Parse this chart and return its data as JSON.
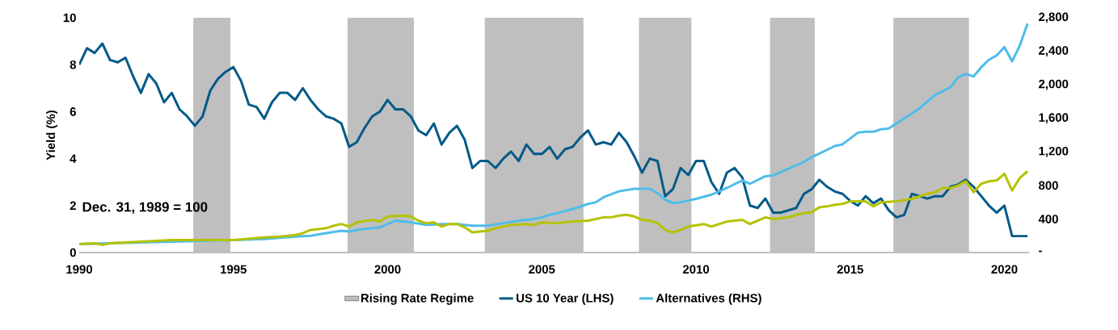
{
  "chart_data": {
    "type": "line",
    "ylabel": "Yield (%)",
    "annotations": [
      "Dec. 31, 1989 = 100"
    ],
    "xlim": [
      1990,
      2020.8
    ],
    "xticks": [
      1990,
      1995,
      2000,
      2005,
      2010,
      2015,
      2020
    ],
    "ylim": [
      0,
      10
    ],
    "yticks": [
      0,
      2,
      4,
      6,
      8,
      10
    ],
    "y2lim": [
      0,
      2800
    ],
    "y2ticks": [
      {
        "value": 0,
        "label": "-"
      },
      400,
      800,
      {
        "value": 1200,
        "label": "1,200"
      },
      {
        "value": 1600,
        "label": "1,600"
      },
      {
        "value": 2000,
        "label": "2,000"
      },
      {
        "value": 2400,
        "label": "2,400"
      },
      {
        "value": 2800,
        "label": "2,800"
      }
    ],
    "legend": "bottom",
    "bands": [
      {
        "axis": "x",
        "from": 1993.7,
        "to": 1994.9,
        "label": "Rising Rate Regime",
        "color": "#bfbfbf"
      },
      {
        "axis": "x",
        "from": 1998.7,
        "to": 2000.85,
        "color": "#bfbfbf"
      },
      {
        "axis": "x",
        "from": 2003.15,
        "to": 2006.35,
        "color": "#bfbfbf"
      },
      {
        "axis": "x",
        "from": 2008.15,
        "to": 2009.85,
        "color": "#bfbfbf"
      },
      {
        "axis": "x",
        "from": 2012.4,
        "to": 2013.85,
        "color": "#bfbfbf"
      },
      {
        "axis": "x",
        "from": 2016.4,
        "to": 2018.85,
        "color": "#bfbfbf"
      }
    ],
    "series": [
      {
        "name": "US 10 Year (LHS)",
        "color": "#005a87",
        "x": [
          1990,
          1990.25,
          1990.5,
          1990.75,
          1991,
          1991.25,
          1991.5,
          1991.75,
          1992,
          1992.25,
          1992.5,
          1992.75,
          1993,
          1993.25,
          1993.5,
          1993.75,
          1994,
          1994.25,
          1994.5,
          1994.75,
          1995,
          1995.25,
          1995.5,
          1995.75,
          1996,
          1996.25,
          1996.5,
          1996.75,
          1997,
          1997.25,
          1997.5,
          1997.75,
          1998,
          1998.25,
          1998.5,
          1998.75,
          1999,
          1999.25,
          1999.5,
          1999.75,
          2000,
          2000.25,
          2000.5,
          2000.75,
          2001,
          2001.25,
          2001.5,
          2001.75,
          2002,
          2002.25,
          2002.5,
          2002.75,
          2003,
          2003.25,
          2003.5,
          2003.75,
          2004,
          2004.25,
          2004.5,
          2004.75,
          2005,
          2005.25,
          2005.5,
          2005.75,
          2006,
          2006.25,
          2006.5,
          2006.75,
          2007,
          2007.25,
          2007.5,
          2007.75,
          2008,
          2008.25,
          2008.5,
          2008.75,
          2009,
          2009.25,
          2009.5,
          2009.75,
          2010,
          2010.25,
          2010.5,
          2010.75,
          2011,
          2011.25,
          2011.5,
          2011.75,
          2012,
          2012.25,
          2012.5,
          2012.75,
          2013,
          2013.25,
          2013.5,
          2013.75,
          2014,
          2014.25,
          2014.5,
          2014.75,
          2015,
          2015.25,
          2015.5,
          2015.75,
          2016,
          2016.25,
          2016.5,
          2016.75,
          2017,
          2017.25,
          2017.5,
          2017.75,
          2018,
          2018.25,
          2018.5,
          2018.75,
          2019,
          2019.25,
          2019.5,
          2019.75,
          2020,
          2020.25,
          2020.5,
          2020.75
        ],
        "values": [
          8.0,
          8.7,
          8.5,
          8.9,
          8.2,
          8.1,
          8.3,
          7.5,
          6.8,
          7.6,
          7.2,
          6.4,
          6.8,
          6.1,
          5.8,
          5.4,
          5.8,
          6.9,
          7.4,
          7.7,
          7.9,
          7.3,
          6.3,
          6.2,
          5.7,
          6.4,
          6.8,
          6.8,
          6.5,
          7.0,
          6.5,
          6.1,
          5.8,
          5.7,
          5.5,
          4.5,
          4.7,
          5.3,
          5.8,
          6.0,
          6.5,
          6.1,
          6.1,
          5.8,
          5.2,
          5.0,
          5.5,
          4.6,
          5.1,
          5.4,
          4.8,
          3.6,
          3.9,
          3.9,
          3.6,
          4.0,
          4.3,
          3.9,
          4.6,
          4.2,
          4.2,
          4.5,
          4.0,
          4.4,
          4.5,
          4.9,
          5.2,
          4.6,
          4.7,
          4.6,
          5.1,
          4.7,
          4.1,
          3.4,
          4.0,
          3.9,
          2.4,
          2.7,
          3.6,
          3.3,
          3.9,
          3.9,
          3.0,
          2.5,
          3.4,
          3.6,
          3.2,
          2.0,
          1.9,
          2.3,
          1.7,
          1.7,
          1.8,
          1.9,
          2.5,
          2.7,
          3.1,
          2.8,
          2.6,
          2.5,
          2.2,
          2.0,
          2.4,
          2.1,
          2.3,
          1.8,
          1.5,
          1.6,
          2.5,
          2.4,
          2.3,
          2.4,
          2.4,
          2.8,
          2.9,
          3.1,
          2.8,
          2.4,
          2.0,
          1.7,
          2.0,
          0.7,
          0.7,
          0.7
        ]
      },
      {
        "name": "Alternatives (RHS)",
        "color": "#4dbde9",
        "axis": "y2",
        "x": [
          1990,
          1991,
          1992,
          1993,
          1994,
          1995,
          1996,
          1997,
          1997.5,
          1998,
          1998.5,
          1998.75,
          1999,
          1999.5,
          1999.75,
          2000.25,
          2000.5,
          2000.75,
          2001.25,
          2001.75,
          2002.25,
          2002.75,
          2003.25,
          2003.75,
          2004.25,
          2004.75,
          2005,
          2005.25,
          2005.5,
          2006,
          2006.5,
          2006.75,
          2007,
          2007.5,
          2008,
          2008.25,
          2008.5,
          2008.75,
          2009,
          2009.25,
          2009.5,
          2010,
          2010.5,
          2011,
          2011.5,
          2011.75,
          2012.25,
          2012.5,
          2013,
          2013.5,
          2013.75,
          2014,
          2014.5,
          2014.75,
          2015.25,
          2015.5,
          2015.75,
          2016,
          2016.25,
          2016.75,
          2017.25,
          2017.75,
          2018.25,
          2018.5,
          2018.75,
          2019,
          2019.25,
          2019.5,
          2019.75,
          2020,
          2020.25,
          2020.5,
          2020.75
        ],
        "values": [
          100,
          110,
          120,
          130,
          140,
          150,
          160,
          190,
          200,
          230,
          260,
          250,
          270,
          290,
          300,
          380,
          370,
          360,
          330,
          340,
          340,
          320,
          320,
          350,
          380,
          400,
          420,
          450,
          470,
          520,
          580,
          600,
          660,
          730,
          760,
          760,
          760,
          710,
          630,
          590,
          600,
          640,
          690,
          770,
          860,
          820,
          910,
          920,
          1000,
          1080,
          1140,
          1180,
          1270,
          1290,
          1430,
          1440,
          1440,
          1470,
          1480,
          1600,
          1720,
          1880,
          1970,
          2090,
          2130,
          2100,
          2210,
          2300,
          2350,
          2450,
          2280,
          2470,
          2730
        ]
      },
      {
        "color": "#b5c200",
        "axis": "y2",
        "x": [
          1990,
          1990.5,
          1990.75,
          1991,
          1992,
          1993,
          1994,
          1994.5,
          1995,
          1996,
          1996.5,
          1997,
          1997.25,
          1997.5,
          1997.75,
          1998,
          1998.25,
          1998.5,
          1998.75,
          1999,
          1999.5,
          1999.75,
          2000,
          2000.5,
          2000.75,
          2001,
          2001.25,
          2001.5,
          2001.75,
          2002,
          2002.25,
          2002.5,
          2002.75,
          2003.25,
          2003.5,
          2004,
          2004.5,
          2004.75,
          2005,
          2005.5,
          2006,
          2006.5,
          2007,
          2007.25,
          2007.5,
          2007.75,
          2008,
          2008.25,
          2008.5,
          2008.75,
          2009,
          2009.25,
          2009.5,
          2009.75,
          2010.25,
          2010.5,
          2011,
          2011.5,
          2011.75,
          2012.25,
          2012.5,
          2013,
          2013.25,
          2013.5,
          2013.75,
          2014,
          2014.25,
          2014.5,
          2014.75,
          2015,
          2015.5,
          2015.75,
          2016,
          2016.5,
          2017,
          2017.5,
          2017.75,
          2018,
          2018.25,
          2018.5,
          2018.75,
          2019,
          2019.25,
          2019.5,
          2019.75,
          2020,
          2020.25,
          2020.5,
          2020.75
        ],
        "values": [
          100,
          110,
          90,
          110,
          130,
          150,
          150,
          150,
          150,
          180,
          190,
          210,
          230,
          270,
          280,
          290,
          320,
          340,
          310,
          360,
          390,
          370,
          430,
          440,
          430,
          380,
          350,
          360,
          310,
          340,
          340,
          300,
          240,
          260,
          290,
          330,
          340,
          330,
          360,
          350,
          370,
          380,
          420,
          420,
          440,
          450,
          430,
          390,
          380,
          350,
          270,
          240,
          270,
          310,
          340,
          310,
          370,
          390,
          340,
          420,
          400,
          420,
          450,
          470,
          480,
          540,
          550,
          570,
          580,
          610,
          610,
          550,
          600,
          610,
          640,
          700,
          720,
          770,
          770,
          800,
          850,
          720,
          820,
          850,
          860,
          940,
          740,
          890,
          970
        ]
      }
    ]
  }
}
